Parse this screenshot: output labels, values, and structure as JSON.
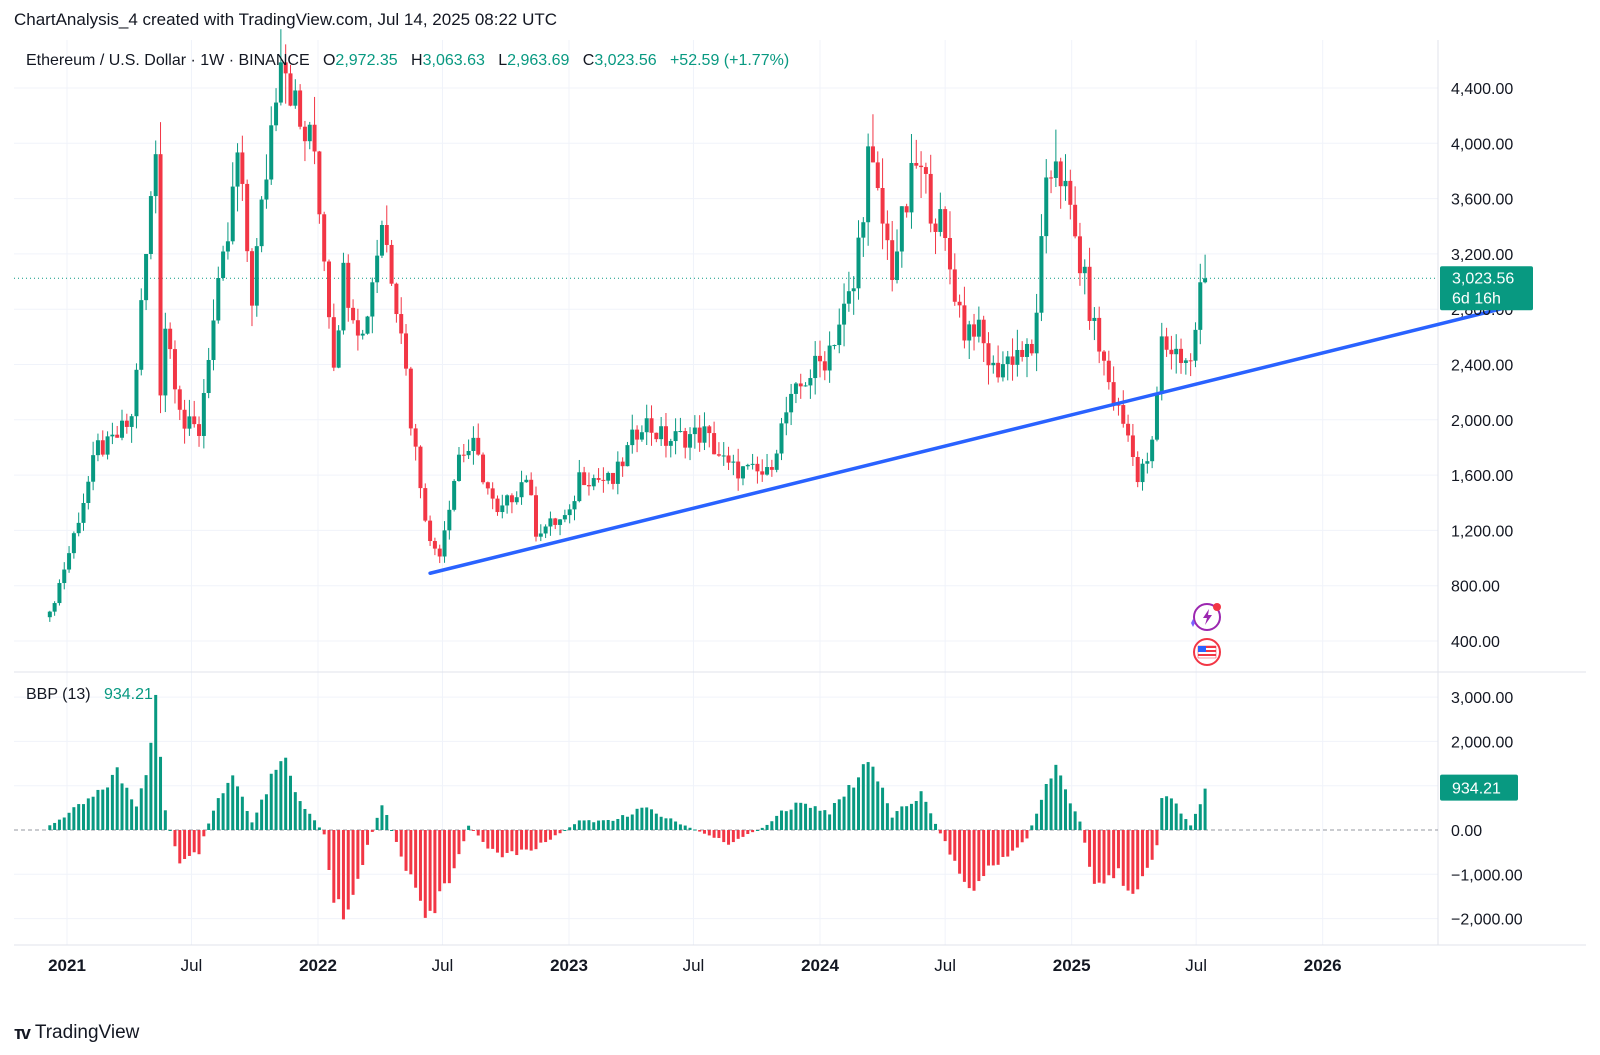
{
  "header": {
    "caption": "ChartAnalysis_4 created with TradingView.com, Jul 14, 2025 08:22 UTC"
  },
  "main_legend": {
    "symbol": "Ethereum / U.S. Dollar · 1W · BINANCE",
    "o_label": "O",
    "o_value": "2,972.35",
    "h_label": "H",
    "h_value": "3,063.63",
    "l_label": "L",
    "l_value": "2,963.69",
    "c_label": "C",
    "c_value": "3,023.56",
    "change": "+52.59 (+1.77%)"
  },
  "bbp_legend": {
    "name": "BBP (13)",
    "value": "934.21"
  },
  "price_tag": {
    "value": "3,023.56",
    "countdown": "6d 16h"
  },
  "bbp_tag": {
    "value": "934.21"
  },
  "footer": {
    "brand": "TradingView"
  },
  "colors": {
    "up": "#089981",
    "down": "#f23645",
    "trendline": "#2962ff",
    "grid": "#f0f3fa"
  },
  "icons": [
    "lightning-event-icon",
    "us-flag-event-icon"
  ],
  "chart_data": [
    {
      "type": "candlestick",
      "title": "Ethereum / U.S. Dollar · 1W · BINANCE",
      "y_ticks": [
        400,
        800,
        1200,
        1600,
        2000,
        2400,
        2800,
        3200,
        3600,
        4000,
        4400
      ],
      "y_tick_labels": [
        "400.00",
        "800.00",
        "1,200.00",
        "1,600.00",
        "2,000.00",
        "2,400.00",
        "2,800.00",
        "3,200.00",
        "3,600.00",
        "4,000.00",
        "4,400.00"
      ],
      "x_ticks": [
        {
          "label": "2021",
          "date": "2021-01-01",
          "bold": true
        },
        {
          "label": "Jul",
          "date": "2021-07-01",
          "bold": false
        },
        {
          "label": "2022",
          "date": "2022-01-01",
          "bold": true
        },
        {
          "label": "Jul",
          "date": "2022-07-01",
          "bold": false
        },
        {
          "label": "2023",
          "date": "2023-01-01",
          "bold": true
        },
        {
          "label": "Jul",
          "date": "2023-07-01",
          "bold": false
        },
        {
          "label": "2024",
          "date": "2024-01-01",
          "bold": true
        },
        {
          "label": "Jul",
          "date": "2024-07-01",
          "bold": false
        },
        {
          "label": "2025",
          "date": "2025-01-01",
          "bold": true
        },
        {
          "label": "Jul",
          "date": "2025-07-01",
          "bold": false
        },
        {
          "label": "2026",
          "date": "2026-01-01",
          "bold": true
        }
      ],
      "last_price": 3023.56,
      "trendline": [
        {
          "date": "2022-06-13",
          "price": 890
        },
        {
          "date": "2026-10-26",
          "price": 2850
        }
      ],
      "keypoints": [
        {
          "date": "2020-12-07",
          "price": 590
        },
        {
          "date": "2021-01-04",
          "price": 1040
        },
        {
          "date": "2021-02-15",
          "price": 1800
        },
        {
          "date": "2021-03-01",
          "price": 1800
        },
        {
          "date": "2021-04-05",
          "price": 2000
        },
        {
          "date": "2021-04-19",
          "price": 2800
        },
        {
          "date": "2021-05-10",
          "price": 3950
        },
        {
          "date": "2021-05-17",
          "price": 2250
        },
        {
          "date": "2021-05-24",
          "price": 2700
        },
        {
          "date": "2021-06-21",
          "price": 1950
        },
        {
          "date": "2021-07-12",
          "price": 1920
        },
        {
          "date": "2021-07-26",
          "price": 2500
        },
        {
          "date": "2021-08-23",
          "price": 3300
        },
        {
          "date": "2021-09-06",
          "price": 3900
        },
        {
          "date": "2021-09-27",
          "price": 2900
        },
        {
          "date": "2021-10-11",
          "price": 3500
        },
        {
          "date": "2021-11-08",
          "price": 4750
        },
        {
          "date": "2021-12-06",
          "price": 4100
        },
        {
          "date": "2021-12-27",
          "price": 3950
        },
        {
          "date": "2022-01-24",
          "price": 2450
        },
        {
          "date": "2022-02-07",
          "price": 3050
        },
        {
          "date": "2022-03-07",
          "price": 2600
        },
        {
          "date": "2022-04-04",
          "price": 3450
        },
        {
          "date": "2022-05-02",
          "price": 2700
        },
        {
          "date": "2022-05-16",
          "price": 2000
        },
        {
          "date": "2022-06-13",
          "price": 1100
        },
        {
          "date": "2022-06-27",
          "price": 1050
        },
        {
          "date": "2022-07-25",
          "price": 1750
        },
        {
          "date": "2022-08-15",
          "price": 1800
        },
        {
          "date": "2022-09-19",
          "price": 1300
        },
        {
          "date": "2022-10-31",
          "price": 1600
        },
        {
          "date": "2022-11-14",
          "price": 1200
        },
        {
          "date": "2023-01-02",
          "price": 1300
        },
        {
          "date": "2023-01-16",
          "price": 1600
        },
        {
          "date": "2023-03-06",
          "price": 1550
        },
        {
          "date": "2023-04-17",
          "price": 2000
        },
        {
          "date": "2023-05-22",
          "price": 1850
        },
        {
          "date": "2023-06-19",
          "price": 1880
        },
        {
          "date": "2023-07-17",
          "price": 1900
        },
        {
          "date": "2023-08-21",
          "price": 1650
        },
        {
          "date": "2023-10-16",
          "price": 1600
        },
        {
          "date": "2023-11-13",
          "price": 2050
        },
        {
          "date": "2023-12-11",
          "price": 2300
        },
        {
          "date": "2024-01-08",
          "price": 2450
        },
        {
          "date": "2024-02-19",
          "price": 2950
        },
        {
          "date": "2024-03-11",
          "price": 3900
        },
        {
          "date": "2024-04-15",
          "price": 3100
        },
        {
          "date": "2024-05-20",
          "price": 3850
        },
        {
          "date": "2024-06-24",
          "price": 3400
        },
        {
          "date": "2024-07-29",
          "price": 2650
        },
        {
          "date": "2024-08-12",
          "price": 2700
        },
        {
          "date": "2024-09-09",
          "price": 2350
        },
        {
          "date": "2024-10-14",
          "price": 2500
        },
        {
          "date": "2024-11-04",
          "price": 2450
        },
        {
          "date": "2024-11-25",
          "price": 3600
        },
        {
          "date": "2024-12-09",
          "price": 3950
        },
        {
          "date": "2025-01-06",
          "price": 3300
        },
        {
          "date": "2025-02-03",
          "price": 2650
        },
        {
          "date": "2025-03-03",
          "price": 2150
        },
        {
          "date": "2025-03-31",
          "price": 1800
        },
        {
          "date": "2025-04-07",
          "price": 1550
        },
        {
          "date": "2025-04-28",
          "price": 1800
        },
        {
          "date": "2025-05-12",
          "price": 2550
        },
        {
          "date": "2025-06-16",
          "price": 2450
        },
        {
          "date": "2025-06-23",
          "price": 2400
        },
        {
          "date": "2025-07-07",
          "price": 2950
        },
        {
          "date": "2025-07-14",
          "price": 3023
        }
      ]
    },
    {
      "type": "histogram",
      "title": "BBP (13)",
      "y_ticks": [
        -2000,
        -1000,
        0,
        1000,
        2000,
        3000
      ],
      "y_tick_labels": [
        "−2,000.00",
        "−1,000.00",
        "0.00",
        "1,000.00",
        "2,000.00",
        "3,000.00"
      ],
      "last_value": 934.21,
      "keypoints": [
        {
          "date": "2020-12-07",
          "value": 100
        },
        {
          "date": "2021-02-15",
          "value": 800
        },
        {
          "date": "2021-03-15",
          "value": 1300
        },
        {
          "date": "2021-04-12",
          "value": 600
        },
        {
          "date": "2021-05-03",
          "value": 1800
        },
        {
          "date": "2021-05-10",
          "value": 3000
        },
        {
          "date": "2021-05-24",
          "value": 400
        },
        {
          "date": "2021-06-14",
          "value": -800
        },
        {
          "date": "2021-07-12",
          "value": -500
        },
        {
          "date": "2021-08-02",
          "value": 500
        },
        {
          "date": "2021-08-30",
          "value": 1300
        },
        {
          "date": "2021-09-27",
          "value": 200
        },
        {
          "date": "2021-10-18",
          "value": 900
        },
        {
          "date": "2021-11-08",
          "value": 1800
        },
        {
          "date": "2021-12-06",
          "value": 700
        },
        {
          "date": "2022-01-10",
          "value": -100
        },
        {
          "date": "2022-01-24",
          "value": -1500
        },
        {
          "date": "2022-02-07",
          "value": -2000
        },
        {
          "date": "2022-03-07",
          "value": -700
        },
        {
          "date": "2022-04-04",
          "value": 600
        },
        {
          "date": "2022-05-02",
          "value": -600
        },
        {
          "date": "2022-05-30",
          "value": -1500
        },
        {
          "date": "2022-06-13",
          "value": -2000
        },
        {
          "date": "2022-07-11",
          "value": -1200
        },
        {
          "date": "2022-08-08",
          "value": 100
        },
        {
          "date": "2022-09-19",
          "value": -600
        },
        {
          "date": "2022-11-14",
          "value": -400
        },
        {
          "date": "2023-01-16",
          "value": 200
        },
        {
          "date": "2023-03-06",
          "value": 200
        },
        {
          "date": "2023-04-17",
          "value": 500
        },
        {
          "date": "2023-06-19",
          "value": 100
        },
        {
          "date": "2023-08-21",
          "value": -300
        },
        {
          "date": "2023-10-16",
          "value": 100
        },
        {
          "date": "2023-11-13",
          "value": 500
        },
        {
          "date": "2023-12-11",
          "value": 600
        },
        {
          "date": "2024-01-15",
          "value": 400
        },
        {
          "date": "2024-02-26",
          "value": 1200
        },
        {
          "date": "2024-03-11",
          "value": 1700
        },
        {
          "date": "2024-04-15",
          "value": 300
        },
        {
          "date": "2024-05-27",
          "value": 800
        },
        {
          "date": "2024-07-08",
          "value": -500
        },
        {
          "date": "2024-08-05",
          "value": -1400
        },
        {
          "date": "2024-09-09",
          "value": -800
        },
        {
          "date": "2024-10-28",
          "value": -200
        },
        {
          "date": "2024-11-25",
          "value": 1000
        },
        {
          "date": "2024-12-09",
          "value": 1400
        },
        {
          "date": "2025-01-13",
          "value": 200
        },
        {
          "date": "2025-02-03",
          "value": -1200
        },
        {
          "date": "2025-03-10",
          "value": -1000
        },
        {
          "date": "2025-04-07",
          "value": -1400
        },
        {
          "date": "2025-05-05",
          "value": -400
        },
        {
          "date": "2025-05-12",
          "value": 700
        },
        {
          "date": "2025-06-02",
          "value": 600
        },
        {
          "date": "2025-06-23",
          "value": 100
        },
        {
          "date": "2025-07-07",
          "value": 600
        },
        {
          "date": "2025-07-14",
          "value": 934
        }
      ]
    }
  ]
}
